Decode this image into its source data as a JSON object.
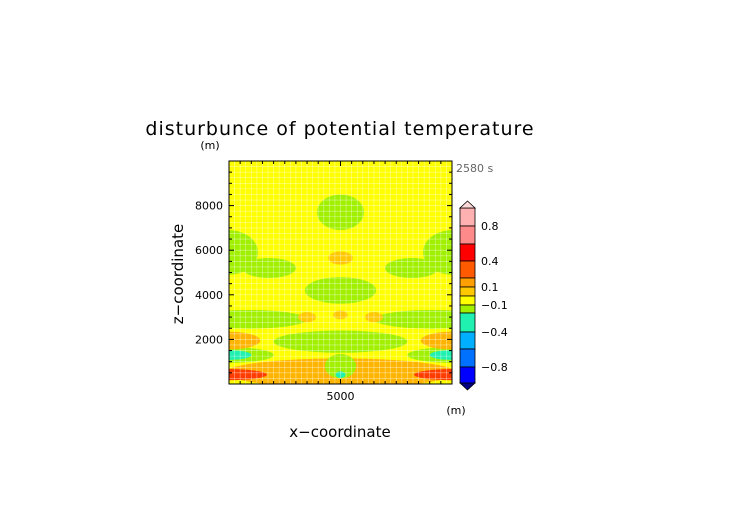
{
  "chart_data": {
    "type": "heatmap",
    "title": "disturbunce of potential temperature",
    "xlabel": "x−coordinate",
    "ylabel": "z−coordinate",
    "x_unit": "(m)",
    "y_unit": "(m)",
    "time_label": "2580 s",
    "xlim": [
      0,
      10000
    ],
    "ylim": [
      0,
      10000
    ],
    "x_ticks": [
      {
        "value": 5000,
        "label": "5000"
      }
    ],
    "y_ticks": [
      {
        "value": 2000,
        "label": "2000"
      },
      {
        "value": 4000,
        "label": "4000"
      },
      {
        "value": 6000,
        "label": "6000"
      },
      {
        "value": 8000,
        "label": "8000"
      }
    ],
    "grid": true,
    "background_level_color": "#ffff00",
    "colorbar": {
      "bands": [
        {
          "lo": 0.8,
          "hi": 1.0,
          "color": "#ffb0b0"
        },
        {
          "lo": 0.6,
          "hi": 0.8,
          "color": "#ff8a8a"
        },
        {
          "lo": 0.4,
          "hi": 0.6,
          "color": "#ff0000"
        },
        {
          "lo": 0.2,
          "hi": 0.4,
          "color": "#ff5a00"
        },
        {
          "lo": 0.1,
          "hi": 0.2,
          "color": "#ffa000"
        },
        {
          "lo": 0.0,
          "hi": 0.1,
          "color": "#ffc800"
        },
        {
          "lo": -0.1,
          "hi": 0.0,
          "color": "#ffff00"
        },
        {
          "lo": -0.2,
          "hi": -0.1,
          "color": "#a0f000"
        },
        {
          "lo": -0.4,
          "hi": -0.2,
          "color": "#20f0b0"
        },
        {
          "lo": -0.6,
          "hi": -0.4,
          "color": "#00b0ff"
        },
        {
          "lo": -0.8,
          "hi": -0.6,
          "color": "#0070ff"
        },
        {
          "lo": -1.0,
          "hi": -0.8,
          "color": "#0000ff"
        }
      ],
      "labels": [
        {
          "value": 0.8,
          "label": "0.8"
        },
        {
          "value": 0.4,
          "label": "0.4"
        },
        {
          "value": 0.1,
          "label": "0.1"
        },
        {
          "value": -0.1,
          "label": "−0.1"
        },
        {
          "value": -0.4,
          "label": "−0.4"
        },
        {
          "value": -0.8,
          "label": "−0.8"
        }
      ]
    },
    "regions": [
      {
        "x": 5000,
        "z": 500,
        "rx": 5200,
        "rz": 650,
        "color": "#ffb400"
      },
      {
        "x": 0,
        "z": 420,
        "rx": 1700,
        "rz": 250,
        "color": "#ff3c00"
      },
      {
        "x": 10000,
        "z": 420,
        "rx": 1700,
        "rz": 250,
        "color": "#ff3c00"
      },
      {
        "x": 5000,
        "z": 800,
        "rx": 700,
        "rz": 550,
        "color": "#a0f000"
      },
      {
        "x": 5000,
        "z": 420,
        "rx": 220,
        "rz": 150,
        "color": "#20f0b0"
      },
      {
        "x": 0,
        "z": 1300,
        "rx": 2000,
        "rz": 350,
        "color": "#a0f000"
      },
      {
        "x": 10000,
        "z": 1300,
        "rx": 2000,
        "rz": 350,
        "color": "#a0f000"
      },
      {
        "x": 0,
        "z": 1300,
        "rx": 1000,
        "rz": 220,
        "color": "#20f0b0"
      },
      {
        "x": 10000,
        "z": 1300,
        "rx": 1000,
        "rz": 220,
        "color": "#20f0b0"
      },
      {
        "x": 0,
        "z": 1950,
        "rx": 1400,
        "rz": 400,
        "color": "#ffb400"
      },
      {
        "x": 10000,
        "z": 1950,
        "rx": 1400,
        "rz": 400,
        "color": "#ffb400"
      },
      {
        "x": 5000,
        "z": 1900,
        "rx": 3000,
        "rz": 500,
        "color": "#a0f000"
      },
      {
        "x": 900,
        "z": 2900,
        "rx": 2600,
        "rz": 420,
        "color": "#a0f000"
      },
      {
        "x": 9100,
        "z": 2900,
        "rx": 2600,
        "rz": 420,
        "color": "#a0f000"
      },
      {
        "x": 3500,
        "z": 3000,
        "rx": 400,
        "rz": 230,
        "color": "#ffc800"
      },
      {
        "x": 5000,
        "z": 3100,
        "rx": 330,
        "rz": 200,
        "color": "#ffc800"
      },
      {
        "x": 6500,
        "z": 3000,
        "rx": 400,
        "rz": 230,
        "color": "#ffc800"
      },
      {
        "x": 5000,
        "z": 4200,
        "rx": 1600,
        "rz": 600,
        "color": "#a0f000"
      },
      {
        "x": 5000,
        "z": 5650,
        "rx": 550,
        "rz": 300,
        "color": "#ffc800"
      },
      {
        "x": 0,
        "z": 5900,
        "rx": 1300,
        "rz": 1000,
        "color": "#a0f000"
      },
      {
        "x": 10000,
        "z": 5900,
        "rx": 1300,
        "rz": 1000,
        "color": "#a0f000"
      },
      {
        "x": 1800,
        "z": 5200,
        "rx": 1200,
        "rz": 450,
        "color": "#a0f000"
      },
      {
        "x": 8200,
        "z": 5200,
        "rx": 1200,
        "rz": 450,
        "color": "#a0f000"
      },
      {
        "x": 5000,
        "z": 7700,
        "rx": 1050,
        "rz": 800,
        "color": "#a0f000"
      }
    ]
  }
}
